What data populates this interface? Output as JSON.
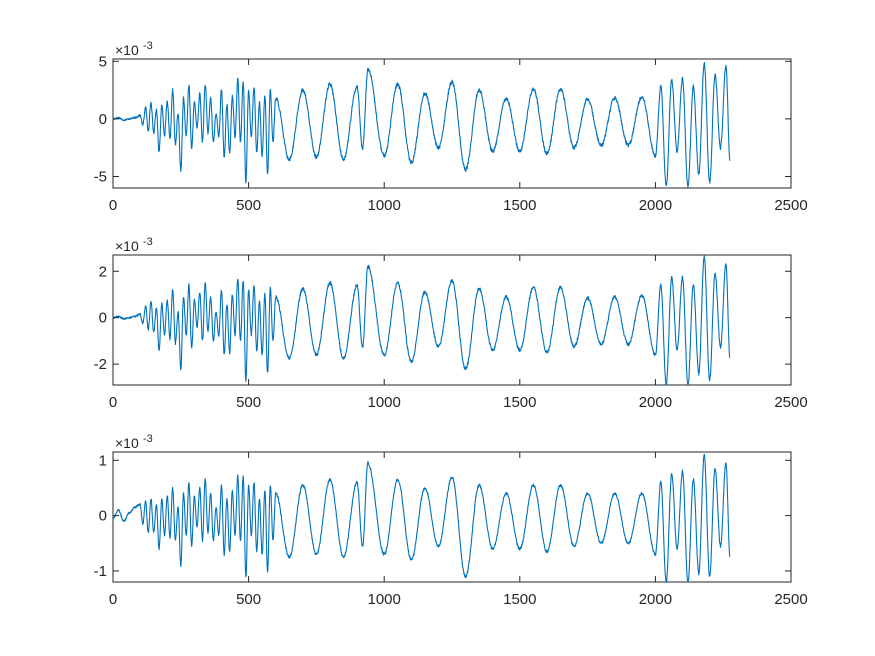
{
  "chart_data": [
    {
      "type": "line",
      "title": "",
      "xlabel": "",
      "ylabel": "",
      "exponent_base": "×10",
      "exponent_power": "-3",
      "xlim": [
        0,
        2500
      ],
      "ylim": [
        -6,
        5.2
      ],
      "xticks": [
        0,
        500,
        1000,
        1500,
        2000,
        2500
      ],
      "xtick_labels": [
        "0",
        "500",
        "1000",
        "1500",
        "2000",
        "2500"
      ],
      "yticks": [
        -5,
        0,
        5
      ],
      "ytick_labels": [
        "-5",
        "0",
        "5"
      ],
      "grid": false,
      "color": "#0072BD",
      "n_points": 2275,
      "series": [
        {
          "x": [
            0,
            20,
            40,
            60,
            80,
            100,
            110,
            120,
            130,
            140,
            150,
            160,
            170,
            180,
            190,
            200,
            210,
            220,
            230,
            240,
            250,
            260,
            270,
            280,
            290,
            300,
            310,
            320,
            330,
            340,
            350,
            360,
            370,
            380,
            390,
            400,
            410,
            420,
            430,
            440,
            450,
            460,
            470,
            480,
            490,
            500,
            510,
            520,
            530,
            540,
            550,
            560,
            570,
            580,
            590,
            600,
            650,
            700,
            750,
            800,
            850,
            900,
            920,
            940,
            1000,
            1050,
            1100,
            1150,
            1200,
            1250,
            1300,
            1350,
            1400,
            1450,
            1500,
            1550,
            1600,
            1650,
            1700,
            1750,
            1800,
            1850,
            1900,
            1950,
            2000,
            2020,
            2040,
            2060,
            2080,
            2100,
            2120,
            2140,
            2160,
            2180,
            2200,
            2220,
            2240,
            2260,
            2275
          ],
          "values": [
            0.0,
            0.1,
            -0.1,
            0.0,
            0.1,
            0.3,
            -0.5,
            1.0,
            -1.0,
            1.4,
            -1.2,
            0.8,
            -2.8,
            1.2,
            -1.4,
            1.5,
            -1.8,
            2.5,
            -2.2,
            0.5,
            -4.5,
            1.8,
            -1.5,
            2.9,
            -2.6,
            1.5,
            -0.8,
            2.2,
            -2.0,
            3.0,
            -1.2,
            1.8,
            -2.0,
            0.5,
            -1.5,
            2.5,
            -3.3,
            1.2,
            -3.0,
            2.0,
            -1.5,
            3.5,
            -2.0,
            3.2,
            -5.4,
            2.4,
            -1.5,
            2.8,
            -2.9,
            1.4,
            -3.2,
            2.0,
            -4.8,
            2.5,
            -2.0,
            1.8,
            -3.5,
            2.5,
            -3.3,
            3.0,
            -3.5,
            2.8,
            -2.6,
            4.3,
            -3.2,
            3.0,
            -3.8,
            2.2,
            -2.5,
            3.2,
            -4.4,
            2.5,
            -2.8,
            1.8,
            -2.8,
            2.6,
            -3.0,
            2.6,
            -2.5,
            1.7,
            -2.3,
            1.8,
            -2.3,
            1.9,
            -3.2,
            2.8,
            -5.8,
            3.4,
            -2.8,
            3.5,
            -5.9,
            2.8,
            -4.8,
            4.8,
            -5.5,
            3.8,
            -2.5,
            4.6,
            -3.6
          ]
        }
      ]
    },
    {
      "type": "line",
      "title": "",
      "xlabel": "",
      "ylabel": "",
      "exponent_base": "×10",
      "exponent_power": "-3",
      "xlim": [
        0,
        2500
      ],
      "ylim": [
        -2.9,
        2.7
      ],
      "xticks": [
        0,
        500,
        1000,
        1500,
        2000,
        2500
      ],
      "xtick_labels": [
        "0",
        "500",
        "1000",
        "1500",
        "2000",
        "2500"
      ],
      "yticks": [
        -2,
        0,
        2
      ],
      "ytick_labels": [
        "-2",
        "0",
        "2"
      ],
      "grid": false,
      "color": "#0072BD",
      "n_points": 2275,
      "series": [
        {
          "x": [
            0,
            20,
            40,
            60,
            80,
            100,
            110,
            120,
            130,
            140,
            150,
            160,
            170,
            180,
            190,
            200,
            210,
            220,
            230,
            240,
            250,
            260,
            270,
            280,
            290,
            300,
            310,
            320,
            330,
            340,
            350,
            360,
            370,
            380,
            390,
            400,
            410,
            420,
            430,
            440,
            450,
            460,
            470,
            480,
            490,
            500,
            510,
            520,
            530,
            540,
            550,
            560,
            570,
            580,
            590,
            600,
            650,
            700,
            750,
            800,
            850,
            900,
            920,
            940,
            1000,
            1050,
            1100,
            1150,
            1200,
            1250,
            1300,
            1350,
            1400,
            1450,
            1500,
            1550,
            1600,
            1650,
            1700,
            1750,
            1800,
            1850,
            1900,
            1950,
            2000,
            2020,
            2040,
            2060,
            2080,
            2100,
            2120,
            2140,
            2160,
            2180,
            2200,
            2220,
            2240,
            2260,
            2275
          ],
          "values": [
            0.0,
            0.05,
            -0.05,
            0.0,
            0.05,
            0.15,
            -0.25,
            0.5,
            -0.5,
            0.7,
            -0.6,
            0.4,
            -1.4,
            0.6,
            -0.7,
            0.75,
            -0.9,
            1.2,
            -1.1,
            0.25,
            -2.2,
            0.9,
            -0.75,
            1.4,
            -1.3,
            0.75,
            -0.4,
            1.1,
            -1.0,
            1.5,
            -0.6,
            0.9,
            -1.0,
            0.25,
            -0.75,
            1.2,
            -1.6,
            0.6,
            -1.5,
            1.0,
            -0.75,
            1.7,
            -1.0,
            1.6,
            -2.7,
            1.2,
            -0.75,
            1.4,
            -1.45,
            0.7,
            -1.6,
            1.0,
            -2.4,
            1.25,
            -1.0,
            0.9,
            -1.75,
            1.25,
            -1.6,
            1.5,
            -1.75,
            1.4,
            -1.3,
            2.2,
            -1.6,
            1.5,
            -1.9,
            1.1,
            -1.25,
            1.6,
            -2.2,
            1.25,
            -1.4,
            0.9,
            -1.4,
            1.3,
            -1.5,
            1.3,
            -1.25,
            0.85,
            -1.15,
            0.9,
            -1.15,
            0.95,
            -1.6,
            1.4,
            -2.9,
            1.7,
            -1.4,
            1.75,
            -2.9,
            1.4,
            -2.4,
            2.6,
            -2.7,
            1.9,
            -1.25,
            2.3,
            -1.8
          ]
        }
      ]
    },
    {
      "type": "line",
      "title": "",
      "xlabel": "",
      "ylabel": "",
      "exponent_base": "×10",
      "exponent_power": "-3",
      "xlim": [
        0,
        2500
      ],
      "ylim": [
        -1.2,
        1.15
      ],
      "xticks": [
        0,
        500,
        1000,
        1500,
        2000,
        2500
      ],
      "xtick_labels": [
        "0",
        "500",
        "1000",
        "1500",
        "2000",
        "2500"
      ],
      "yticks": [
        -1,
        0,
        1
      ],
      "ytick_labels": [
        "-1",
        "0",
        "1"
      ],
      "grid": false,
      "color": "#0072BD",
      "n_points": 2275,
      "series": [
        {
          "x": [
            0,
            20,
            40,
            60,
            80,
            100,
            110,
            120,
            130,
            140,
            150,
            160,
            170,
            180,
            190,
            200,
            210,
            220,
            230,
            240,
            250,
            260,
            270,
            280,
            290,
            300,
            310,
            320,
            330,
            340,
            350,
            360,
            370,
            380,
            390,
            400,
            410,
            420,
            430,
            440,
            450,
            460,
            470,
            480,
            490,
            500,
            510,
            520,
            530,
            540,
            550,
            560,
            570,
            580,
            590,
            600,
            650,
            700,
            750,
            800,
            850,
            900,
            920,
            940,
            1000,
            1050,
            1100,
            1150,
            1200,
            1250,
            1300,
            1350,
            1400,
            1450,
            1500,
            1550,
            1600,
            1650,
            1700,
            1750,
            1800,
            1850,
            1900,
            1950,
            2000,
            2020,
            2040,
            2060,
            2080,
            2100,
            2120,
            2140,
            2160,
            2180,
            2200,
            2220,
            2240,
            2260,
            2275
          ],
          "values": [
            -0.05,
            0.1,
            -0.1,
            0.05,
            0.15,
            0.2,
            -0.15,
            0.25,
            -0.3,
            0.3,
            -0.3,
            0.2,
            -0.6,
            0.3,
            -0.35,
            0.35,
            -0.4,
            0.5,
            -0.45,
            0.15,
            -0.9,
            0.4,
            -0.35,
            0.6,
            -0.55,
            0.35,
            -0.2,
            0.5,
            -0.45,
            0.65,
            -0.3,
            0.4,
            -0.45,
            0.15,
            -0.35,
            0.55,
            -0.7,
            0.3,
            -0.65,
            0.45,
            -0.35,
            0.72,
            -0.45,
            0.7,
            -1.1,
            0.55,
            -0.35,
            0.6,
            -0.65,
            0.3,
            -0.7,
            0.45,
            -1.0,
            0.55,
            -0.45,
            0.4,
            -0.75,
            0.55,
            -0.7,
            0.65,
            -0.75,
            0.6,
            -0.55,
            0.95,
            -0.7,
            0.65,
            -0.8,
            0.5,
            -0.55,
            0.7,
            -1.1,
            0.55,
            -0.6,
            0.4,
            -0.6,
            0.55,
            -0.65,
            0.55,
            -0.55,
            0.4,
            -0.5,
            0.4,
            -0.5,
            0.4,
            -0.7,
            0.6,
            -1.2,
            0.75,
            -0.6,
            0.8,
            -1.2,
            0.65,
            -1.05,
            1.1,
            -1.1,
            0.85,
            -0.55,
            0.95,
            -0.75
          ]
        }
      ]
    }
  ]
}
